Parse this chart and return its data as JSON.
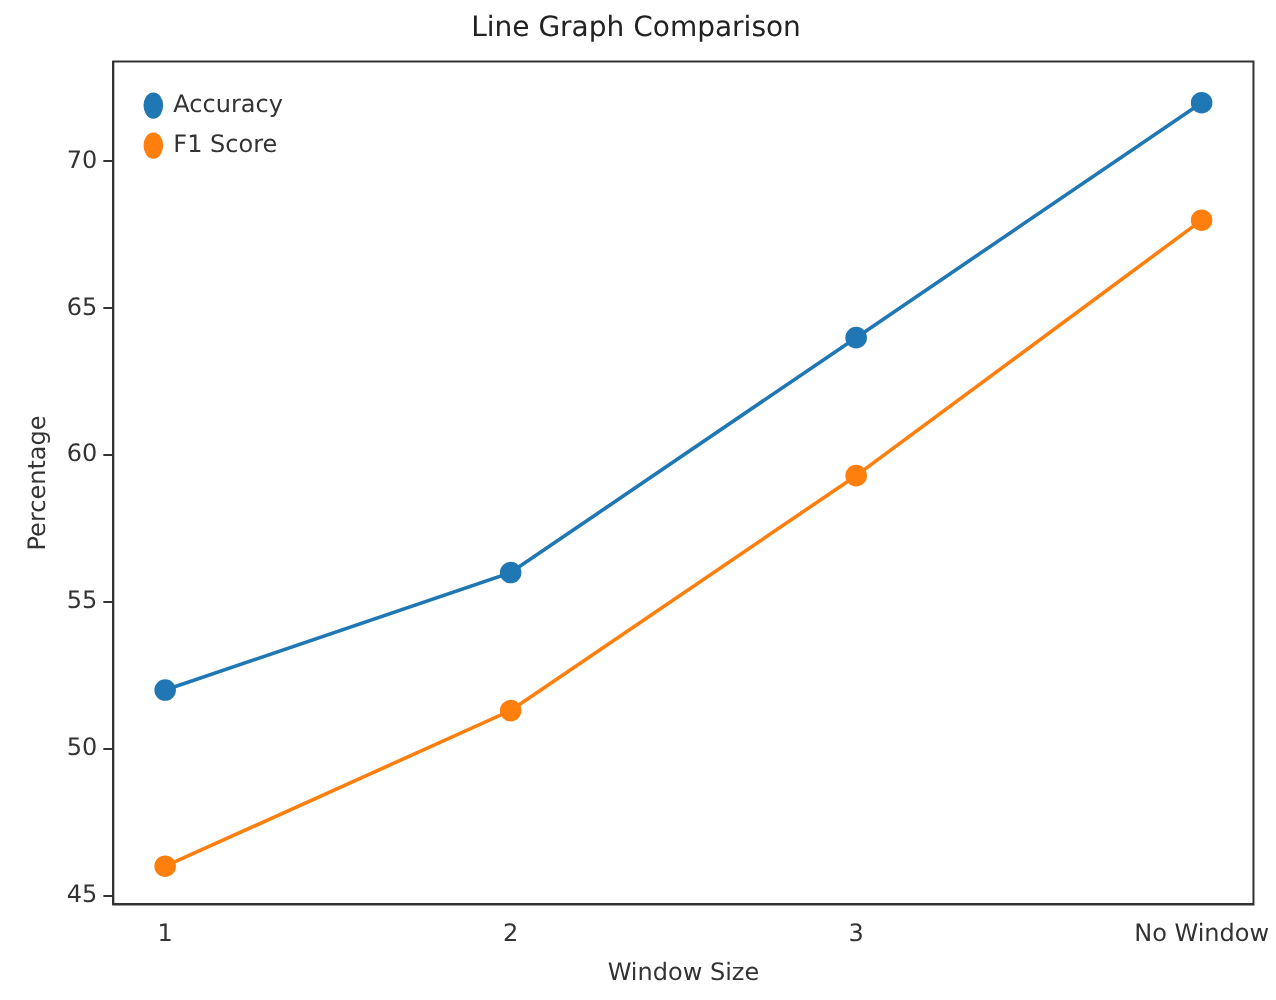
{
  "chart_data": {
    "type": "line",
    "title": "Line Graph Comparison",
    "xlabel": "Window Size",
    "ylabel": "Percentage",
    "categories": [
      "1",
      "2",
      "3",
      "No Window"
    ],
    "series": [
      {
        "name": "Accuracy",
        "color": "#1f77b4",
        "values": [
          52,
          56,
          64,
          72
        ]
      },
      {
        "name": "F1 Score",
        "color": "#ff7f0e",
        "values": [
          46,
          51.3,
          59.3,
          68
        ]
      }
    ],
    "ylim": [
      44.7,
      73.4
    ],
    "yticks": [
      45,
      50,
      55,
      60,
      65,
      70
    ],
    "grid": false,
    "legend": "top left",
    "marker": "circle",
    "line_style": "solid"
  }
}
